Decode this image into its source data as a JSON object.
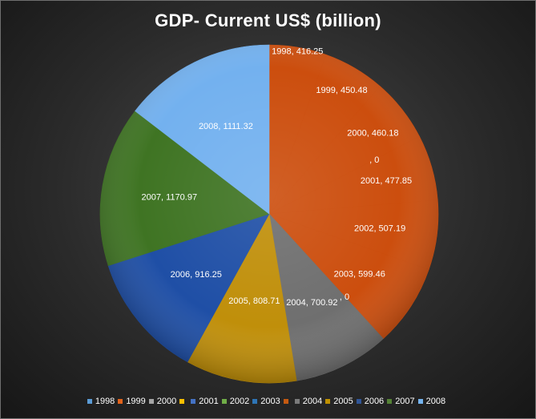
{
  "chart_data": {
    "type": "pie",
    "title": "GDP- Current US$ (billion)",
    "series": [
      {
        "label": "1998",
        "value": 416.25,
        "color": "#5b9bd5",
        "data_label": "1998, 416.25"
      },
      {
        "label": "1999",
        "value": 450.48,
        "color": "#e2631b",
        "data_label": "1999, 450.48"
      },
      {
        "label": "2000",
        "value": 460.18,
        "color": "#a5a5a5",
        "data_label": "2000, 460.18"
      },
      {
        "label": "",
        "value": 0,
        "color": "#ffc000",
        "data_label": ", 0"
      },
      {
        "label": "2001",
        "value": 477.85,
        "color": "#4472c4",
        "data_label": "2001, 477.85"
      },
      {
        "label": "2002",
        "value": 507.19,
        "color": "#70ad47",
        "data_label": "2002, 507.19"
      },
      {
        "label": "2003",
        "value": 599.46,
        "color": "#2e75b6",
        "data_label": "2003, 599.46"
      },
      {
        "label": "",
        "value": 0,
        "color": "#c55a11",
        "data_label": ", 0"
      },
      {
        "label": "2004",
        "value": 700.92,
        "color": "#7b7b7b",
        "data_label": "2004, 700.92"
      },
      {
        "label": "2005",
        "value": 808.71,
        "color": "#bf9000",
        "data_label": "2005, 808.71"
      },
      {
        "label": "2006",
        "value": 916.25,
        "color": "#2f5597",
        "data_label": "2006, 916.25"
      },
      {
        "label": "2007",
        "value": 1170.97,
        "color": "#548235",
        "data_label": "2007, 1170.97"
      },
      {
        "label": "2008",
        "value": 1111.32,
        "color": "#75b3ee",
        "data_label": "2008, 1111.32"
      }
    ],
    "legend_position": "bottom"
  },
  "pie_render": {
    "slice_colors": [
      "#cc4e0e",
      "#cc4e0e",
      "#cc4e0e",
      "#cc4e0e",
      "#cc4e0e",
      "#cc4e0e",
      "#cc4e0e",
      "#cc4e0e",
      "#6f6f6f",
      "#c08f0a",
      "#1f4fa6",
      "#3f7423",
      "#73b1ef"
    ]
  }
}
